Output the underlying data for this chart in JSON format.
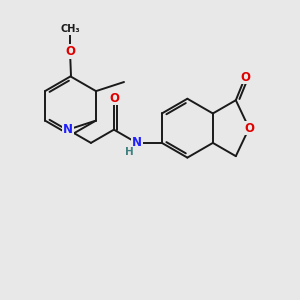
{
  "background_color": "#e8e8e8",
  "bond_color": "#1a1a1a",
  "bond_width": 1.4,
  "atom_colors": {
    "N": "#2020ff",
    "O": "#e00000",
    "H": "#408080",
    "C": "#1a1a1a"
  },
  "font_size_atom": 8.5,
  "figsize": [
    3.0,
    3.0
  ],
  "dpi": 100
}
